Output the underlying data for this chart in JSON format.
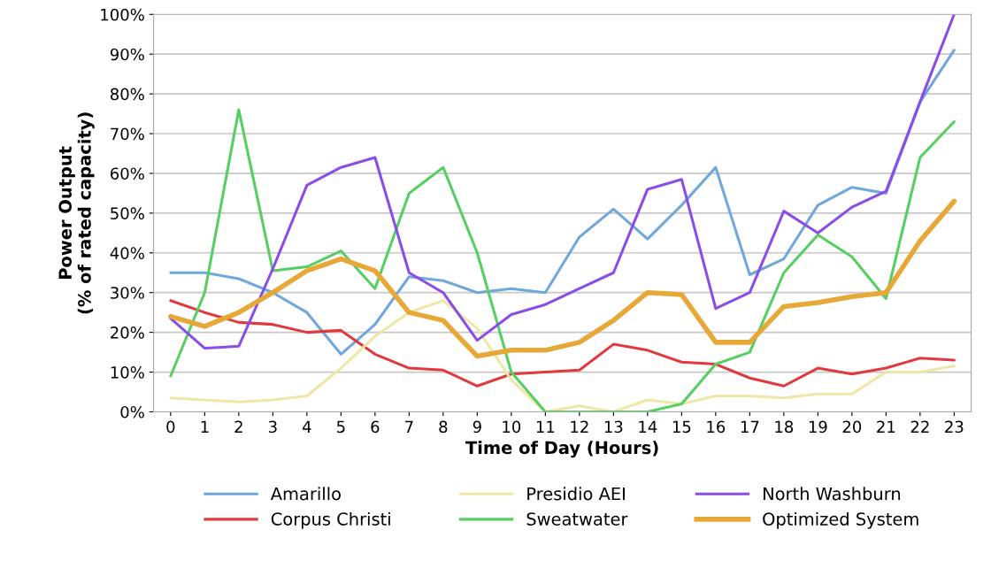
{
  "chart_data": {
    "type": "line",
    "xlabel": "Time of Day (Hours)",
    "ylabel": "Power Output\n(% of rated capacity)",
    "categories": [
      "0",
      "1",
      "2",
      "3",
      "4",
      "5",
      "6",
      "7",
      "8",
      "9",
      "10",
      "11",
      "12",
      "13",
      "14",
      "15",
      "16",
      "17",
      "18",
      "19",
      "20",
      "21",
      "22",
      "23"
    ],
    "ylim": [
      0,
      100
    ],
    "yticks": [
      {
        "value": 0,
        "label": "0%"
      },
      {
        "value": 10,
        "label": "10%"
      },
      {
        "value": 20,
        "label": "20%"
      },
      {
        "value": 30,
        "label": "30%"
      },
      {
        "value": 40,
        "label": "40%"
      },
      {
        "value": 50,
        "label": "50%"
      },
      {
        "value": 60,
        "label": "60%"
      },
      {
        "value": 70,
        "label": "70%"
      },
      {
        "value": 80,
        "label": "80%"
      },
      {
        "value": 90,
        "label": "90%"
      },
      {
        "value": 100,
        "label": "100%"
      }
    ],
    "grid": "y",
    "legend": "bottom",
    "marker": "none",
    "line_style": "solid",
    "series": [
      {
        "name": "Amarillo",
        "color": "#6fa8dc",
        "values": [
          35,
          35,
          33.5,
          30,
          25,
          14.5,
          22,
          34,
          33,
          30,
          31,
          30,
          44,
          51,
          43.5,
          52,
          61.5,
          34.5,
          38.5,
          52,
          56.5,
          55,
          78,
          91
        ]
      },
      {
        "name": "Corpus Christi",
        "color": "#e0393e",
        "values": [
          28,
          25,
          22.5,
          22,
          20,
          20.5,
          14.5,
          11,
          10.5,
          6.5,
          9.5,
          10,
          10.5,
          17,
          15.5,
          12.5,
          12,
          8.5,
          6.5,
          11,
          9.5,
          11,
          13.5,
          13
        ]
      },
      {
        "name": "Presidio AEI",
        "color": "#efe7a6",
        "values": [
          3.5,
          3,
          2.5,
          3,
          4,
          11,
          19,
          25,
          28,
          21,
          8,
          0,
          1.5,
          0,
          3,
          2,
          4,
          4,
          3.5,
          4.5,
          4.5,
          10,
          10,
          11.5
        ]
      },
      {
        "name": "Sweatwater",
        "color": "#55d060",
        "values": [
          9,
          30,
          76,
          35.5,
          36.5,
          40.5,
          31,
          55,
          61.5,
          40,
          10,
          0,
          0,
          0,
          0,
          2,
          12,
          15,
          35,
          44.5,
          39,
          28.5,
          64,
          73
        ]
      },
      {
        "name": "North Washburn",
        "color": "#8a4de8",
        "values": [
          23.5,
          16,
          16.5,
          36,
          57,
          61.5,
          64,
          35,
          30,
          18,
          24.5,
          27,
          31,
          35,
          56,
          58.5,
          26,
          30,
          50.5,
          45,
          51.5,
          55.5,
          78,
          100
        ]
      },
      {
        "name": "Optimized System",
        "color": "#e8a838",
        "values": [
          24,
          21.5,
          25,
          30,
          35.5,
          38.5,
          35.5,
          25,
          23,
          14,
          15.5,
          15.5,
          17.5,
          23,
          30,
          29.5,
          17.5,
          17.5,
          26.5,
          27.5,
          29,
          30,
          43,
          53
        ]
      }
    ]
  }
}
